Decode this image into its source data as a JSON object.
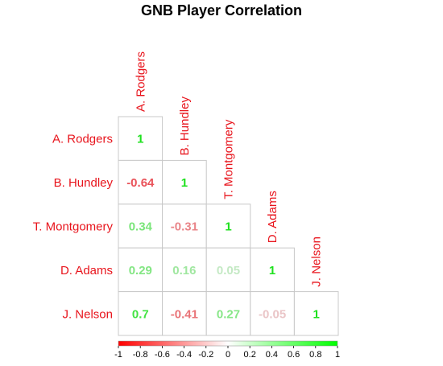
{
  "chart_data": {
    "type": "heatmap",
    "title": "GNB Player Correlation",
    "labels": [
      "A. Rodgers",
      "B. Hundley",
      "T. Montgomery",
      "D. Adams",
      "J. Nelson"
    ],
    "values": [
      [
        1
      ],
      [
        -0.64,
        1
      ],
      [
        0.34,
        -0.31,
        1
      ],
      [
        0.29,
        0.16,
        0.05,
        1
      ],
      [
        0.7,
        -0.41,
        0.27,
        -0.05,
        1
      ]
    ],
    "value_labels": [
      [
        "1"
      ],
      [
        "-0.64",
        "1"
      ],
      [
        "0.34",
        "-0.31",
        "1"
      ],
      [
        "0.29",
        "0.16",
        "0.05",
        "1"
      ],
      [
        "0.7",
        "-0.41",
        "0.27",
        "-0.05",
        "1"
      ]
    ],
    "triangle": "lower",
    "colorbar": {
      "range": [
        -1,
        1
      ],
      "ticks": [
        "-1",
        "-0.8",
        "-0.6",
        "-0.4",
        "-0.2",
        "0",
        "0.2",
        "0.4",
        "0.6",
        "0.8",
        "1"
      ],
      "low_color": "#FF0000",
      "mid_color": "#FFFFFF",
      "high_color": "#00FF00",
      "position": "bottom"
    },
    "label_color": "#E8141C",
    "grid_color": "#C8C8C8"
  }
}
